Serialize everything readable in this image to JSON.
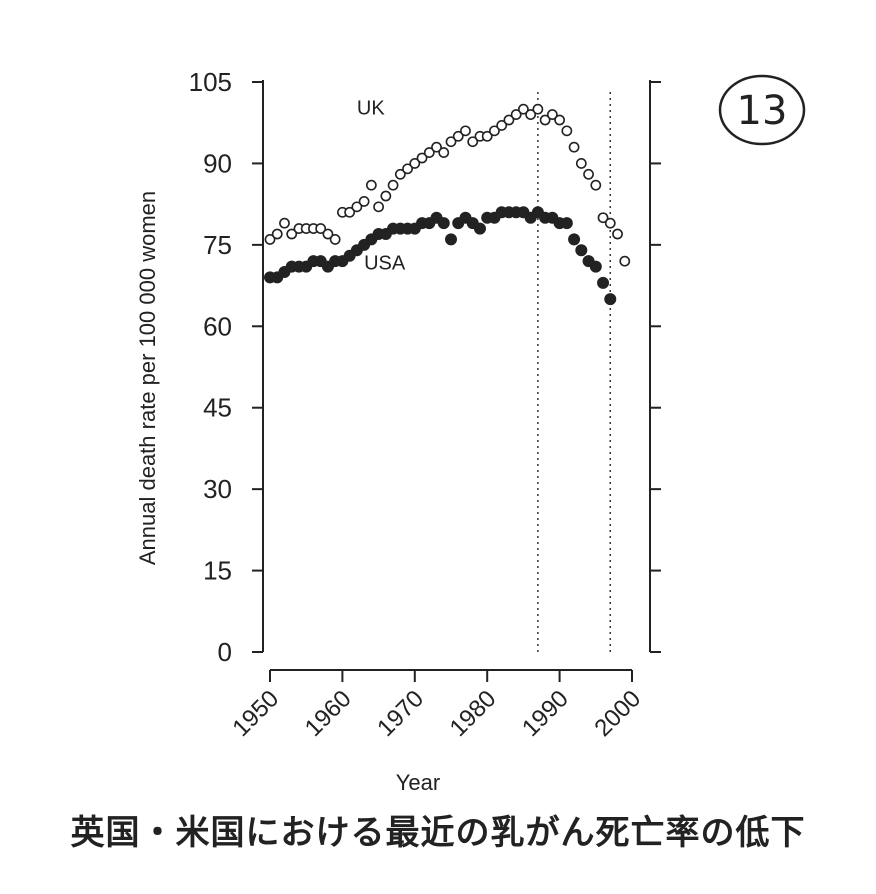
{
  "badge": "13",
  "caption": "英国・米国における最近の乳がん死亡率の低下",
  "chart_data": {
    "type": "scatter",
    "title": "",
    "xlabel": "Year",
    "ylabel": "Annual death rate per 100 000 women",
    "xlim": [
      1950,
      2000
    ],
    "ylim": [
      0,
      105
    ],
    "x_ticks": [
      "1950",
      "1960",
      "1970",
      "1980",
      "1990",
      "2000"
    ],
    "y_ticks": [
      "0",
      "15",
      "30",
      "45",
      "60",
      "75",
      "90",
      "105"
    ],
    "reference_lines_x": [
      1987,
      1997
    ],
    "grid": false,
    "series": [
      {
        "name": "UK",
        "marker": "open-circle",
        "color": "#222222",
        "x": [
          1950,
          1951,
          1952,
          1953,
          1954,
          1955,
          1956,
          1957,
          1958,
          1959,
          1960,
          1961,
          1962,
          1963,
          1964,
          1965,
          1966,
          1967,
          1968,
          1969,
          1970,
          1971,
          1972,
          1973,
          1974,
          1975,
          1976,
          1977,
          1978,
          1979,
          1980,
          1981,
          1982,
          1983,
          1984,
          1985,
          1986,
          1987,
          1988,
          1989,
          1990,
          1991,
          1992,
          1993,
          1994,
          1995,
          1996,
          1997,
          1998,
          1999
        ],
        "values": [
          76,
          77,
          79,
          77,
          78,
          78,
          78,
          78,
          77,
          76,
          81,
          81,
          82,
          83,
          86,
          82,
          84,
          86,
          88,
          89,
          90,
          91,
          92,
          93,
          92,
          94,
          95,
          96,
          94,
          95,
          95,
          96,
          97,
          98,
          99,
          100,
          99,
          100,
          98,
          99,
          98,
          96,
          93,
          90,
          88,
          86,
          80,
          79,
          77,
          72
        ]
      },
      {
        "name": "USA",
        "marker": "filled-circle",
        "color": "#222222",
        "x": [
          1950,
          1951,
          1952,
          1953,
          1954,
          1955,
          1956,
          1957,
          1958,
          1959,
          1960,
          1961,
          1962,
          1963,
          1964,
          1965,
          1966,
          1967,
          1968,
          1969,
          1970,
          1971,
          1972,
          1973,
          1974,
          1975,
          1976,
          1977,
          1978,
          1979,
          1980,
          1981,
          1982,
          1983,
          1984,
          1985,
          1986,
          1987,
          1988,
          1989,
          1990,
          1991,
          1992,
          1993,
          1994,
          1995,
          1996,
          1997
        ],
        "values": [
          69,
          69,
          70,
          71,
          71,
          71,
          72,
          72,
          71,
          72,
          72,
          73,
          74,
          75,
          76,
          77,
          77,
          78,
          78,
          78,
          78,
          79,
          79,
          80,
          79,
          76,
          79,
          80,
          79,
          78,
          80,
          80,
          81,
          81,
          81,
          81,
          80,
          81,
          80,
          80,
          79,
          79,
          76,
          74,
          72,
          71,
          68,
          65
        ]
      }
    ]
  }
}
